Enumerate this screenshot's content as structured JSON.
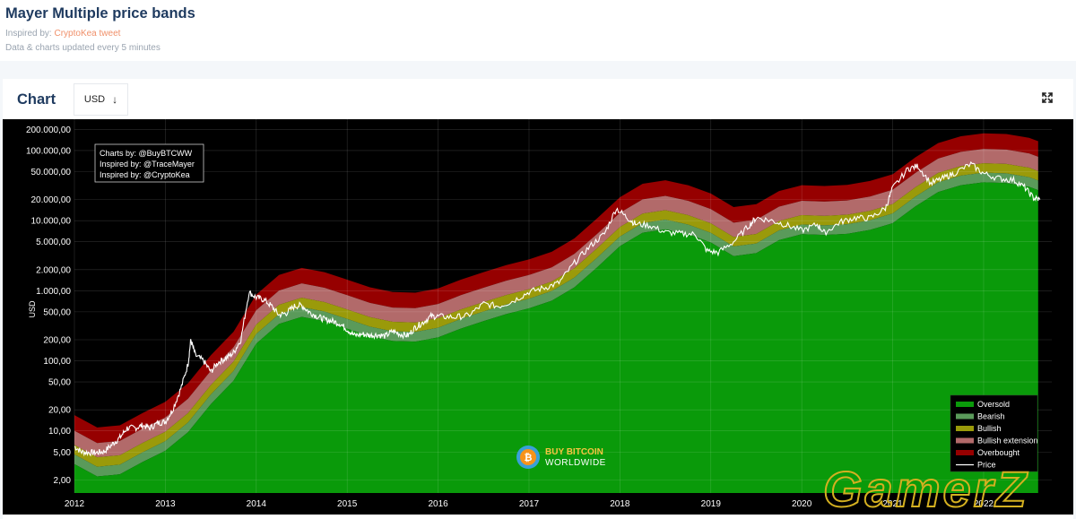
{
  "header": {
    "title": "Mayer Multiple price bands",
    "inspired_prefix": "Inspired by: ",
    "inspired_link": "CryptoKea tweet",
    "updated": "Data & charts updated every 5 minutes"
  },
  "card": {
    "title": "Chart",
    "currency": "USD",
    "currency_arrow": "↓"
  },
  "credits": [
    "Charts by: @BuyBTCWW",
    "Inspired by: @TraceMayer",
    "Inspired by: @CryptoKea"
  ],
  "watermark": {
    "line1": "BUY BITCOIN",
    "line2": "WORLDWIDE",
    "overlay": "GamerZ"
  },
  "colors": {
    "background": "#000000",
    "oversold": "#0a9a0a",
    "bearish": "#5a9a5a",
    "bullish": "#9a9a0a",
    "bullish_extension": "#b26a6a",
    "overbought": "#960000",
    "price": "#ffffff"
  },
  "chart_data": {
    "type": "area",
    "ylabel": "USD",
    "yscale": "log",
    "ylim": [
      1.3,
      280000
    ],
    "xlim": [
      2012.0,
      2022.75
    ],
    "x_ticks": [
      "2012",
      "2013",
      "2014",
      "2015",
      "2016",
      "2017",
      "2018",
      "2019",
      "2020",
      "2021",
      "2022"
    ],
    "y_ticks": [
      {
        "value": 2,
        "label": "2,00"
      },
      {
        "value": 5,
        "label": "5,00"
      },
      {
        "value": 10,
        "label": "10,00"
      },
      {
        "value": 20,
        "label": "20,00"
      },
      {
        "value": 50,
        "label": "50,00"
      },
      {
        "value": 100,
        "label": "100,00"
      },
      {
        "value": 200,
        "label": "200,00"
      },
      {
        "value": 500,
        "label": "500,00"
      },
      {
        "value": 1000,
        "label": "1.000,00"
      },
      {
        "value": 2000,
        "label": "2.000,00"
      },
      {
        "value": 5000,
        "label": "5.000,00"
      },
      {
        "value": 10000,
        "label": "10.000,00"
      },
      {
        "value": 20000,
        "label": "20.000,00"
      },
      {
        "value": 50000,
        "label": "50.000,00"
      },
      {
        "value": 100000,
        "label": "100.000,00"
      },
      {
        "value": 200000,
        "label": "200.000,00"
      }
    ],
    "ma_x": [
      2012.0,
      2012.25,
      2012.5,
      2012.75,
      2013.0,
      2013.25,
      2013.5,
      2013.75,
      2014.0,
      2014.25,
      2014.5,
      2014.75,
      2015.0,
      2015.25,
      2015.5,
      2015.75,
      2016.0,
      2016.25,
      2016.5,
      2016.75,
      2017.0,
      2017.25,
      2017.5,
      2017.75,
      2018.0,
      2018.25,
      2018.5,
      2018.75,
      2019.0,
      2019.25,
      2019.5,
      2019.75,
      2020.0,
      2020.25,
      2020.5,
      2020.75,
      2021.0,
      2021.25,
      2021.5,
      2021.75,
      2022.0,
      2022.25,
      2022.5,
      2022.6
    ],
    "ma_200": [
      4.2,
      2.8,
      3.0,
      4.5,
      6.5,
      12,
      30,
      65,
      220,
      420,
      530,
      460,
      360,
      280,
      240,
      235,
      270,
      360,
      460,
      580,
      700,
      900,
      1400,
      2700,
      5400,
      8400,
      9400,
      8000,
      6100,
      3900,
      4300,
      6600,
      8000,
      7800,
      8100,
      9200,
      11500,
      20000,
      32000,
      40000,
      44000,
      43000,
      38000,
      34000
    ],
    "band_multipliers": {
      "bearish": 0.8,
      "bullish": 1.1,
      "bullish_extension": 1.5,
      "overbought": 2.4,
      "top": 4.0
    },
    "price": {
      "x": [
        2012.0,
        2012.08,
        2012.17,
        2012.25,
        2012.33,
        2012.42,
        2012.5,
        2012.58,
        2012.67,
        2012.75,
        2012.83,
        2012.92,
        2013.0,
        2013.08,
        2013.17,
        2013.25,
        2013.28,
        2013.33,
        2013.42,
        2013.5,
        2013.58,
        2013.67,
        2013.75,
        2013.83,
        2013.92,
        2014.0,
        2014.08,
        2014.17,
        2014.25,
        2014.33,
        2014.42,
        2014.5,
        2014.58,
        2014.67,
        2014.75,
        2014.83,
        2014.92,
        2015.0,
        2015.08,
        2015.17,
        2015.25,
        2015.33,
        2015.42,
        2015.5,
        2015.58,
        2015.67,
        2015.75,
        2015.83,
        2015.92,
        2016.0,
        2016.17,
        2016.33,
        2016.5,
        2016.67,
        2016.83,
        2017.0,
        2017.17,
        2017.33,
        2017.5,
        2017.67,
        2017.83,
        2017.96,
        2018.08,
        2018.17,
        2018.33,
        2018.5,
        2018.67,
        2018.83,
        2018.96,
        2019.08,
        2019.25,
        2019.42,
        2019.5,
        2019.67,
        2019.83,
        2020.0,
        2020.17,
        2020.25,
        2020.42,
        2020.58,
        2020.75,
        2020.92,
        2021.0,
        2021.17,
        2021.28,
        2021.42,
        2021.55,
        2021.67,
        2021.86,
        2022.0,
        2022.17,
        2022.33,
        2022.45,
        2022.55,
        2022.62
      ],
      "y": [
        6,
        5,
        4.9,
        4.9,
        5.1,
        6.5,
        8,
        11,
        11,
        12,
        11,
        13,
        13.5,
        20,
        40,
        90,
        200,
        120,
        100,
        70,
        95,
        110,
        130,
        200,
        950,
        800,
        750,
        600,
        450,
        480,
        600,
        620,
        500,
        430,
        390,
        370,
        340,
        280,
        230,
        240,
        230,
        235,
        225,
        265,
        240,
        230,
        300,
        350,
        430,
        430,
        420,
        440,
        650,
        600,
        720,
        960,
        1100,
        1300,
        2500,
        4300,
        6500,
        15000,
        11000,
        9000,
        8500,
        6800,
        6500,
        6400,
        3700,
        3500,
        5000,
        8500,
        11000,
        10000,
        8700,
        7200,
        8800,
        6700,
        9500,
        11000,
        10800,
        15000,
        29000,
        55000,
        60000,
        34000,
        40000,
        47000,
        64000,
        47000,
        40000,
        38000,
        30000,
        21000,
        20000
      ]
    },
    "legend": {
      "placement": "bottom-right",
      "items": [
        {
          "key": "oversold",
          "label": "Oversold"
        },
        {
          "key": "bearish",
          "label": "Bearish"
        },
        {
          "key": "bullish",
          "label": "Bullish"
        },
        {
          "key": "bullish_extension",
          "label": "Bullish extension"
        },
        {
          "key": "overbought",
          "label": "Overbought"
        },
        {
          "key": "price",
          "label": "Price"
        }
      ]
    },
    "grid": true
  }
}
